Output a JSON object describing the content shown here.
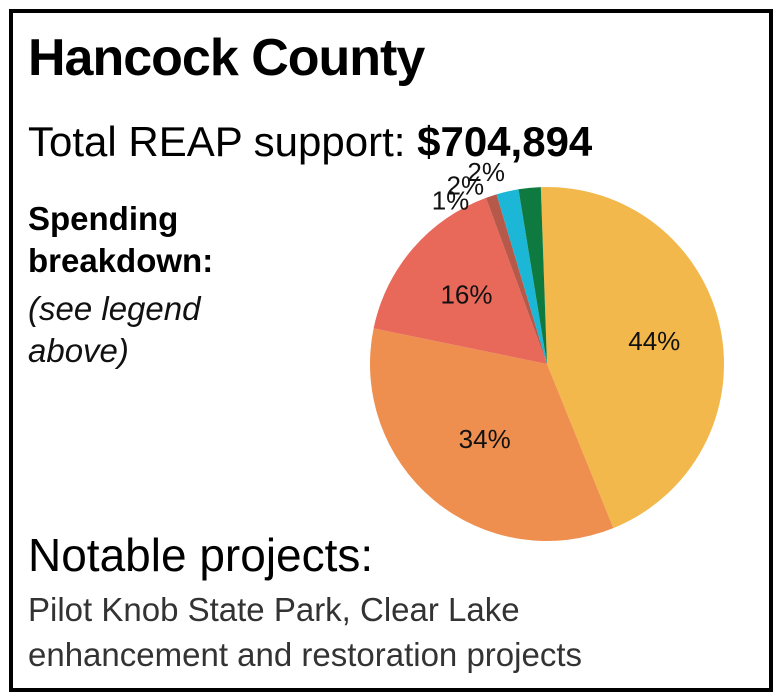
{
  "title": "Hancock County",
  "total": {
    "label": "Total REAP support: ",
    "value": "$704,894"
  },
  "spending": {
    "heading": "Spending breakdown:",
    "note": "(see legend above)"
  },
  "notable": {
    "heading": "Notable projects:",
    "text": "Pilot Knob State Park, Clear Lake enhancement and restoration projects"
  },
  "chart_data": {
    "type": "pie",
    "slices": [
      {
        "label": "44%",
        "value": 44,
        "color": "#F2B84B"
      },
      {
        "label": "34%",
        "value": 34,
        "color": "#EE8E4F"
      },
      {
        "label": "16%",
        "value": 16,
        "color": "#E8685A"
      },
      {
        "label": "1%",
        "value": 1,
        "color": "#B7594A"
      },
      {
        "label": "2%",
        "value": 2,
        "color": "#1CB6D6"
      },
      {
        "label": "2%",
        "value": 2,
        "color": "#0E7A3F"
      }
    ]
  }
}
